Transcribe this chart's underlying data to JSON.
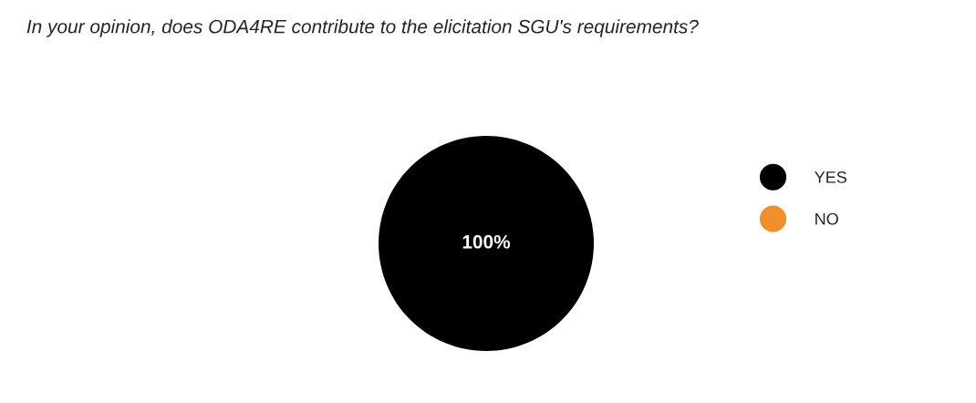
{
  "chart_data": {
    "type": "pie",
    "title": "In your opinion, does ODA4RE contribute to the elicitation SGU's requirements?",
    "categories": [
      "YES",
      "NO"
    ],
    "values": [
      100,
      0
    ],
    "colors": [
      "#000000",
      "#f28e2b"
    ],
    "value_labels": [
      "100%",
      null
    ],
    "legend": "right"
  }
}
